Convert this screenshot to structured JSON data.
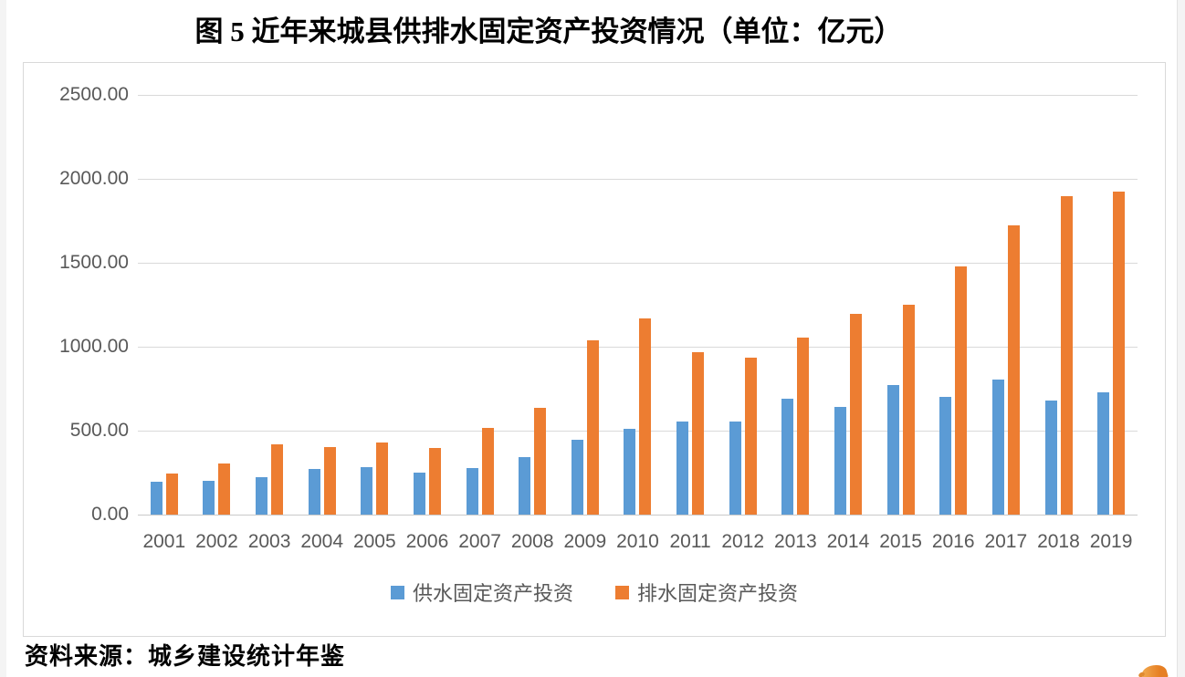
{
  "page": {
    "title": "图 5  近年来城县供排水固定资产投资情况（单位：亿元）",
    "source_note": "资料来源：城乡建设统计年鉴"
  },
  "colors": {
    "supply_bar": "#5B9BD5",
    "drainage_bar": "#ED7D31",
    "gridline": "#D9D9D9",
    "axis_text": "#595959",
    "chart_border": "#D9D9D9",
    "title_text": "#000000"
  },
  "chart_data": {
    "type": "bar",
    "title": "图 5  近年来城县供排水固定资产投资情况（单位：亿元）",
    "unit": "亿元",
    "categories": [
      "2001",
      "2002",
      "2003",
      "2004",
      "2005",
      "2006",
      "2007",
      "2008",
      "2009",
      "2010",
      "2011",
      "2012",
      "2013",
      "2014",
      "2015",
      "2016",
      "2017",
      "2018",
      "2019"
    ],
    "series": [
      {
        "key": "water-supply",
        "name": "供水固定资产投资",
        "color": "#5B9BD5",
        "values": [
          195,
          203,
          222,
          271,
          283,
          249,
          276,
          342,
          445,
          512,
          555,
          553,
          688,
          641,
          771,
          701,
          805,
          682,
          727
        ]
      },
      {
        "key": "drainage",
        "name": "排水固定资产投资",
        "color": "#ED7D31",
        "values": [
          246,
          306,
          419,
          404,
          432,
          399,
          516,
          636,
          1037,
          1170,
          970,
          934,
          1055,
          1196,
          1249,
          1478,
          1725,
          1895,
          1926
        ]
      }
    ],
    "xlabel": "",
    "ylabel": "",
    "ylim": [
      0,
      2500
    ],
    "ytick_step": 500,
    "ytick_labels": [
      "0.00",
      "500.00",
      "1000.00",
      "1500.00",
      "2000.00",
      "2500.00"
    ],
    "grid": true,
    "legend_position": "bottom"
  }
}
